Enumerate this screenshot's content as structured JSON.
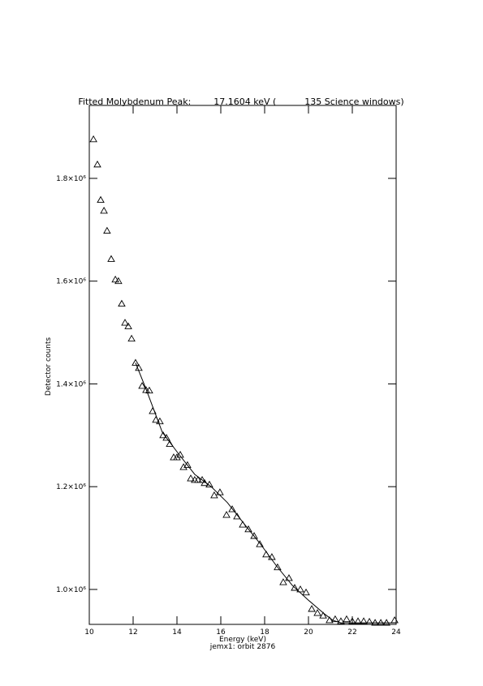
{
  "chart_data": {
    "type": "scatter",
    "title": "Fitted Molybdenum Peak:        17.1604 keV (          135 Science windows)",
    "x_label": "Energy (keV)",
    "subtitle": "jemx1: orbit 2876",
    "y_label": "Detector counts",
    "xlim": [
      10,
      24
    ],
    "xticks": [
      10,
      12,
      14,
      16,
      18,
      20,
      22,
      24
    ],
    "ylim": [
      932000,
      1942000
    ],
    "yticks": [
      {
        "value": 1000000,
        "label": "1.0×10⁶"
      },
      {
        "value": 1200000,
        "label": "1.2×10⁶"
      },
      {
        "value": 1400000,
        "label": "1.4×10⁶"
      },
      {
        "value": 1600000,
        "label": "1.6×10⁶"
      },
      {
        "value": 1800000,
        "label": "1.8×10⁶"
      }
    ],
    "color": "#000000",
    "series": [
      {
        "kind": "points",
        "x": [
          10.19,
          10.37,
          10.52,
          10.67,
          10.81,
          11.0,
          11.19,
          11.33,
          11.48,
          11.63,
          11.78,
          11.93,
          12.11,
          12.26,
          12.41,
          12.59,
          12.74,
          12.89,
          13.04,
          13.22,
          13.37,
          13.52,
          13.67,
          13.85,
          14.0,
          14.15,
          14.3,
          14.48,
          14.63,
          14.81,
          14.96,
          15.15,
          15.26,
          15.48,
          15.7,
          15.96,
          16.26,
          16.52,
          16.74,
          17.0,
          17.26,
          17.52,
          17.78,
          18.07,
          18.33,
          18.59,
          18.85,
          19.11,
          19.37,
          19.63,
          19.89,
          20.15,
          20.41,
          20.67,
          20.96,
          21.22,
          21.48,
          21.74,
          22.0,
          22.26,
          22.52,
          22.78,
          23.04,
          23.3,
          23.56,
          23.93
        ],
        "values": [
          1876000,
          1827000,
          1758000,
          1737000,
          1698000,
          1643000,
          1603000,
          1600000,
          1556000,
          1519000,
          1512000,
          1488000,
          1441000,
          1431000,
          1396000,
          1388000,
          1387000,
          1347000,
          1330000,
          1327000,
          1300000,
          1295000,
          1283000,
          1257000,
          1257000,
          1262000,
          1238000,
          1242000,
          1216000,
          1213000,
          1213000,
          1213000,
          1207000,
          1204000,
          1183000,
          1189000,
          1145000,
          1156000,
          1142000,
          1126000,
          1117000,
          1104000,
          1088000,
          1068000,
          1063000,
          1043000,
          1014000,
          1022000,
          1003000,
          1000000,
          994000,
          962000,
          954000,
          949000,
          940000,
          942000,
          938000,
          942000,
          938000,
          938000,
          938000,
          937000,
          935000,
          935000,
          935000,
          940000
        ]
      },
      {
        "kind": "fit",
        "x": [
          12.11,
          12.59,
          13.33,
          14.07,
          14.81,
          15.56,
          16.3,
          17.04,
          17.78,
          18.52,
          19.26,
          20.0,
          20.74,
          21.11,
          21.48,
          24
        ],
        "values": [
          1441000,
          1390000,
          1306000,
          1264000,
          1224000,
          1200000,
          1169000,
          1129000,
          1090000,
          1047000,
          1008000,
          979000,
          952000,
          940000,
          935000,
          935000
        ]
      }
    ]
  }
}
